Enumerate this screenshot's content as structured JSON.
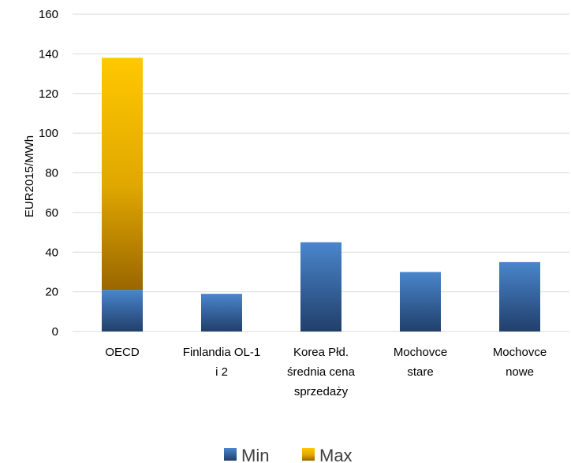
{
  "chart_data": {
    "type": "bar",
    "stacked": true,
    "categories": [
      [
        "OECD"
      ],
      [
        "Finlandia OL-1",
        "i 2"
      ],
      [
        "Korea Płd.",
        "średnia cena",
        "sprzedaży"
      ],
      [
        "Mochovce",
        "stare"
      ],
      [
        "Mochovce",
        "nowe"
      ]
    ],
    "series": [
      {
        "name": "Min",
        "values": [
          21,
          19,
          45,
          30,
          35
        ],
        "color": "#3f72b0"
      },
      {
        "name": "Max",
        "values": [
          117,
          0,
          0,
          0,
          0
        ],
        "color": "#f5bf00"
      }
    ],
    "title": "",
    "xlabel": "",
    "ylabel": "EUR2015/MWh",
    "ylim": [
      0,
      160
    ],
    "yticks": [
      0,
      20,
      40,
      60,
      80,
      100,
      120,
      140,
      160
    ],
    "grid": true,
    "legend": "bottom"
  }
}
